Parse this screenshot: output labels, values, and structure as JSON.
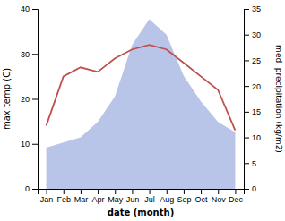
{
  "chart_data": {
    "type": "line",
    "categories": [
      "Jan",
      "Feb",
      "Mar",
      "Apr",
      "May",
      "Jun",
      "Jul",
      "Aug",
      "Sep",
      "Oct",
      "Nov",
      "Dec"
    ],
    "series": [
      {
        "type": "area",
        "axis": "y2",
        "color": "#b8c4e8",
        "values": [
          8,
          9,
          10,
          13,
          18,
          28,
          33,
          30,
          22,
          17,
          13,
          11
        ]
      },
      {
        "type": "line",
        "color": "#c0504d",
        "values": [
          14,
          25,
          27,
          26,
          29,
          31,
          32,
          31,
          28,
          25,
          22,
          13
        ]
      }
    ],
    "xlabel": "date (month)",
    "ylabel": "max temp (C)",
    "y2label": "med. precipitation (kg/m2)",
    "ylim": [
      0,
      40
    ],
    "yticks": [
      0,
      10,
      20,
      30,
      40
    ],
    "y2lim": [
      0,
      35
    ],
    "y2ticks": [
      0,
      5,
      10,
      15,
      20,
      25,
      30,
      35
    ]
  }
}
